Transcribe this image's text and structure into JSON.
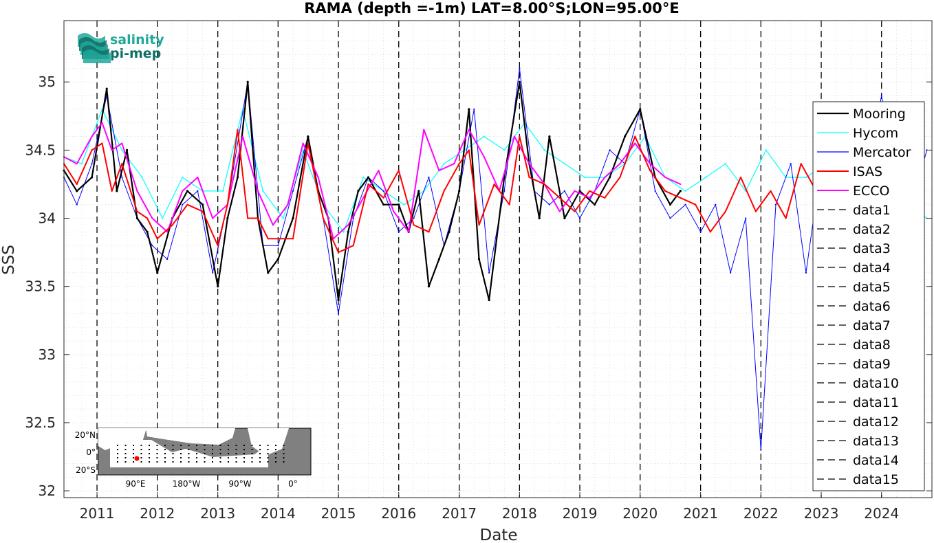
{
  "title": "RAMA (depth =-1m) LAT=8.00°S;LON=95.00°E",
  "logo": {
    "line1": "salinity",
    "line2": "pi-mep",
    "color": "#1fa89a",
    "dark": "#0f6f67"
  },
  "colors": {
    "Mooring": "#000000",
    "Hycom": "#00ffff",
    "Mercator": "#0000ff",
    "ISAS": "#ff0000",
    "ECCO": "#ff00ff"
  },
  "inset_map": {
    "lat_labels": [
      "20°N",
      "0°",
      "20°S"
    ],
    "lon_labels": [
      "90°E",
      "180°W",
      "90°W",
      "0°"
    ],
    "marker_color": "#ff0000"
  },
  "chart_data": {
    "type": "line",
    "title": "RAMA (depth =-1m) LAT=8.00°S;LON=95.00°E",
    "xlabel": "Date",
    "ylabel": "SSS",
    "xlim": [
      "2010-06-15",
      "2024-11-01"
    ],
    "ylim": [
      31.95,
      35.45
    ],
    "yticks": [
      32,
      32.5,
      33,
      33.5,
      34,
      34.5,
      35
    ],
    "ytick_labels": [
      "32",
      "32.5",
      "33",
      "33.5",
      "34",
      "34.5",
      "35"
    ],
    "xticks": [
      "2011",
      "2012",
      "2013",
      "2014",
      "2015",
      "2016",
      "2017",
      "2018",
      "2019",
      "2020",
      "2021",
      "2022",
      "2023",
      "2024"
    ],
    "grid": true,
    "legend_position": "right",
    "vertical_lines": [
      "2011-01-01",
      "2012-01-01",
      "2013-01-01",
      "2014-01-01",
      "2015-01-01",
      "2016-01-01",
      "2017-01-01",
      "2018-01-01",
      "2019-01-01",
      "2020-01-01",
      "2021-01-01",
      "2022-01-01",
      "2023-01-01",
      "2024-01-01"
    ],
    "series": [
      {
        "name": "Mooring",
        "x": [
          "2010-06-15",
          "2010-09-01",
          "2010-12-01",
          "2011-03-01",
          "2011-05-01",
          "2011-07-01",
          "2011-09-01",
          "2011-11-01",
          "2012-01-01",
          "2012-04-01",
          "2012-07-01",
          "2012-10-01",
          "2013-01-01",
          "2013-03-01",
          "2013-05-01",
          "2013-07-01",
          "2013-09-01",
          "2013-11-01",
          "2014-01-01",
          "2014-04-01",
          "2014-07-01",
          "2014-09-01",
          "2014-11-01",
          "2015-01-01",
          "2015-03-01",
          "2015-05-01",
          "2015-07-01",
          "2015-10-01",
          "2016-01-01",
          "2016-03-01",
          "2016-05-01",
          "2016-07-01",
          "2016-09-01",
          "2016-11-01",
          "2017-01-01",
          "2017-03-01",
          "2017-05-01",
          "2017-07-01",
          "2017-10-01",
          "2018-01-01",
          "2018-03-01",
          "2018-05-01",
          "2018-07-01",
          "2018-10-01",
          "2019-01-01",
          "2019-04-01",
          "2019-07-01",
          "2019-10-01",
          "2020-01-01",
          "2020-04-01",
          "2020-07-01",
          "2020-09-01"
        ],
        "y": [
          34.35,
          34.2,
          34.3,
          34.95,
          34.2,
          34.5,
          34.0,
          33.9,
          33.6,
          34.0,
          34.2,
          34.1,
          33.5,
          34.0,
          34.3,
          35.0,
          34.0,
          33.6,
          33.7,
          34.0,
          34.6,
          34.2,
          34.0,
          33.4,
          33.9,
          34.2,
          34.3,
          34.1,
          34.1,
          33.9,
          34.2,
          33.5,
          33.7,
          33.9,
          34.2,
          34.8,
          33.7,
          33.4,
          34.3,
          35.0,
          34.4,
          34.0,
          34.6,
          34.0,
          34.2,
          34.1,
          34.3,
          34.6,
          34.8,
          34.3,
          34.1,
          34.2
        ]
      },
      {
        "name": "Hycom",
        "x": [
          "2010-06-15",
          "2010-10-01",
          "2011-02-01",
          "2011-06-01",
          "2011-10-01",
          "2012-02-01",
          "2012-06-01",
          "2012-10-01",
          "2013-02-01",
          "2013-06-01",
          "2013-10-01",
          "2014-02-01",
          "2014-06-01",
          "2014-10-01",
          "2015-02-01",
          "2015-06-01",
          "2015-10-01",
          "2016-02-01",
          "2016-06-01",
          "2016-10-01",
          "2017-02-01",
          "2017-06-01",
          "2017-10-01",
          "2018-02-01",
          "2018-06-01",
          "2018-10-01",
          "2019-02-01",
          "2019-06-01",
          "2019-10-01",
          "2020-02-01",
          "2020-06-01",
          "2020-10-01",
          "2021-02-01",
          "2021-06-01",
          "2021-10-01",
          "2022-02-01",
          "2022-06-01",
          "2022-10-01",
          "2023-02-01",
          "2023-06-01",
          "2023-10-01",
          "2024-02-01",
          "2024-06-01",
          "2024-10-01"
        ],
        "y": [
          34.45,
          34.4,
          34.8,
          34.5,
          34.3,
          34.0,
          34.3,
          34.2,
          34.2,
          34.8,
          34.2,
          34.0,
          34.5,
          34.1,
          33.9,
          34.3,
          34.2,
          34.1,
          34.2,
          34.4,
          34.5,
          34.6,
          34.5,
          34.7,
          34.5,
          34.4,
          34.3,
          34.3,
          34.4,
          34.6,
          34.3,
          34.2,
          34.3,
          34.4,
          34.2,
          34.5,
          34.3,
          34.3,
          34.4,
          34.2,
          34.2,
          34.3,
          34.1,
          34.0
        ]
      },
      {
        "name": "Mercator",
        "x": [
          "2010-06-15",
          "2010-09-01",
          "2010-12-01",
          "2011-03-01",
          "2011-06-01",
          "2011-09-01",
          "2011-12-01",
          "2012-03-01",
          "2012-06-01",
          "2012-09-01",
          "2012-12-01",
          "2013-03-01",
          "2013-07-01",
          "2013-10-01",
          "2014-01-01",
          "2014-04-01",
          "2014-07-01",
          "2014-10-01",
          "2015-01-01",
          "2015-04-01",
          "2015-07-01",
          "2015-10-01",
          "2016-01-01",
          "2016-04-01",
          "2016-07-01",
          "2016-10-01",
          "2017-01-01",
          "2017-04-01",
          "2017-07-01",
          "2017-10-01",
          "2018-01-01",
          "2018-04-01",
          "2018-07-01",
          "2018-10-01",
          "2019-01-01",
          "2019-04-01",
          "2019-07-01",
          "2019-10-01",
          "2020-01-01",
          "2020-04-01",
          "2020-07-01",
          "2020-10-01",
          "2021-01-01",
          "2021-04-01",
          "2021-07-01",
          "2021-10-01",
          "2022-01-01",
          "2022-04-01",
          "2022-07-01",
          "2022-10-01",
          "2023-01-01",
          "2023-04-01",
          "2023-07-01",
          "2023-10-01",
          "2024-01-01",
          "2024-04-01",
          "2024-07-01",
          "2024-10-01"
        ],
        "y": [
          34.3,
          34.1,
          34.4,
          34.9,
          34.3,
          34.0,
          33.8,
          33.7,
          34.1,
          34.2,
          33.6,
          34.1,
          35.0,
          33.8,
          33.8,
          34.2,
          34.6,
          34.0,
          33.3,
          34.0,
          34.3,
          34.2,
          33.9,
          34.0,
          34.3,
          33.8,
          34.2,
          34.8,
          33.6,
          34.2,
          35.1,
          34.2,
          34.1,
          34.2,
          34.0,
          34.2,
          34.5,
          34.4,
          34.8,
          34.2,
          34.0,
          34.1,
          33.9,
          34.1,
          33.6,
          34.0,
          32.3,
          34.1,
          34.4,
          33.6,
          34.4,
          34.0,
          33.9,
          34.3,
          34.9,
          34.3,
          34.1,
          34.5
        ]
      },
      {
        "name": "ISAS",
        "x": [
          "2010-06-15",
          "2010-09-01",
          "2010-12-01",
          "2011-02-01",
          "2011-04-01",
          "2011-06-01",
          "2011-09-01",
          "2011-11-01",
          "2012-01-01",
          "2012-04-01",
          "2012-07-01",
          "2012-10-01",
          "2013-01-01",
          "2013-03-01",
          "2013-05-01",
          "2013-07-01",
          "2013-09-01",
          "2013-11-01",
          "2014-01-01",
          "2014-04-01",
          "2014-07-01",
          "2014-10-01",
          "2015-01-01",
          "2015-04-01",
          "2015-07-01",
          "2015-10-01",
          "2016-01-01",
          "2016-04-01",
          "2016-07-01",
          "2016-10-01",
          "2017-01-01",
          "2017-03-01",
          "2017-05-01",
          "2017-08-01",
          "2017-11-01",
          "2018-01-01",
          "2018-03-01",
          "2018-06-01",
          "2018-09-01",
          "2018-12-01",
          "2019-03-01",
          "2019-06-01",
          "2019-09-01",
          "2019-12-01",
          "2020-03-01",
          "2020-06-01",
          "2020-09-01",
          "2020-12-01",
          "2021-03-01",
          "2021-06-01",
          "2021-09-01",
          "2021-12-01",
          "2022-03-01",
          "2022-06-01",
          "2022-09-01",
          "2022-12-01"
        ],
        "y": [
          34.4,
          34.25,
          34.5,
          34.55,
          34.2,
          34.4,
          34.05,
          34.0,
          33.85,
          33.95,
          34.1,
          34.05,
          33.8,
          34.1,
          34.65,
          34.0,
          34.0,
          33.85,
          33.85,
          33.85,
          34.55,
          34.0,
          33.75,
          33.8,
          34.25,
          34.15,
          34.35,
          33.95,
          33.9,
          34.2,
          34.4,
          34.5,
          33.95,
          34.25,
          34.1,
          34.6,
          34.3,
          34.25,
          34.15,
          34.05,
          34.2,
          34.15,
          34.3,
          34.6,
          34.35,
          34.2,
          34.15,
          34.1,
          33.9,
          34.05,
          34.3,
          34.05,
          34.2,
          34.0,
          34.4,
          34.2
        ]
      },
      {
        "name": "ECCO",
        "x": [
          "2010-06-15",
          "2010-09-01",
          "2010-12-01",
          "2011-02-01",
          "2011-04-01",
          "2011-06-01",
          "2011-09-01",
          "2011-12-01",
          "2012-03-01",
          "2012-06-01",
          "2012-09-01",
          "2012-12-01",
          "2013-03-01",
          "2013-06-01",
          "2013-09-01",
          "2013-12-01",
          "2014-03-01",
          "2014-06-01",
          "2014-09-01",
          "2014-12-01",
          "2015-03-01",
          "2015-06-01",
          "2015-09-01",
          "2015-12-01",
          "2016-03-01",
          "2016-06-01",
          "2016-09-01",
          "2016-12-01",
          "2017-03-01",
          "2017-06-01",
          "2017-09-01",
          "2017-12-01",
          "2018-03-01",
          "2018-06-01",
          "2018-09-01",
          "2018-12-01",
          "2019-03-01",
          "2019-06-01",
          "2019-09-01",
          "2019-12-01",
          "2020-03-01",
          "2020-06-01",
          "2020-09-01"
        ],
        "y": [
          34.45,
          34.4,
          34.6,
          34.7,
          34.5,
          34.55,
          34.2,
          34.0,
          33.9,
          34.2,
          34.3,
          34.0,
          34.1,
          34.6,
          34.2,
          33.95,
          34.1,
          34.55,
          34.3,
          33.85,
          33.95,
          34.15,
          34.35,
          34.05,
          33.9,
          34.65,
          34.35,
          34.4,
          34.65,
          34.45,
          34.2,
          34.6,
          34.4,
          34.25,
          34.05,
          34.2,
          34.15,
          34.3,
          34.4,
          34.55,
          34.4,
          34.3,
          34.25
        ]
      }
    ],
    "legend_entries": [
      "Mooring",
      "Hycom",
      "Mercator",
      "ISAS",
      "ECCO",
      "data1",
      "data2",
      "data3",
      "data4",
      "data5",
      "data6",
      "data7",
      "data8",
      "data9",
      "data10",
      "data11",
      "data12",
      "data13",
      "data14",
      "data15"
    ]
  }
}
